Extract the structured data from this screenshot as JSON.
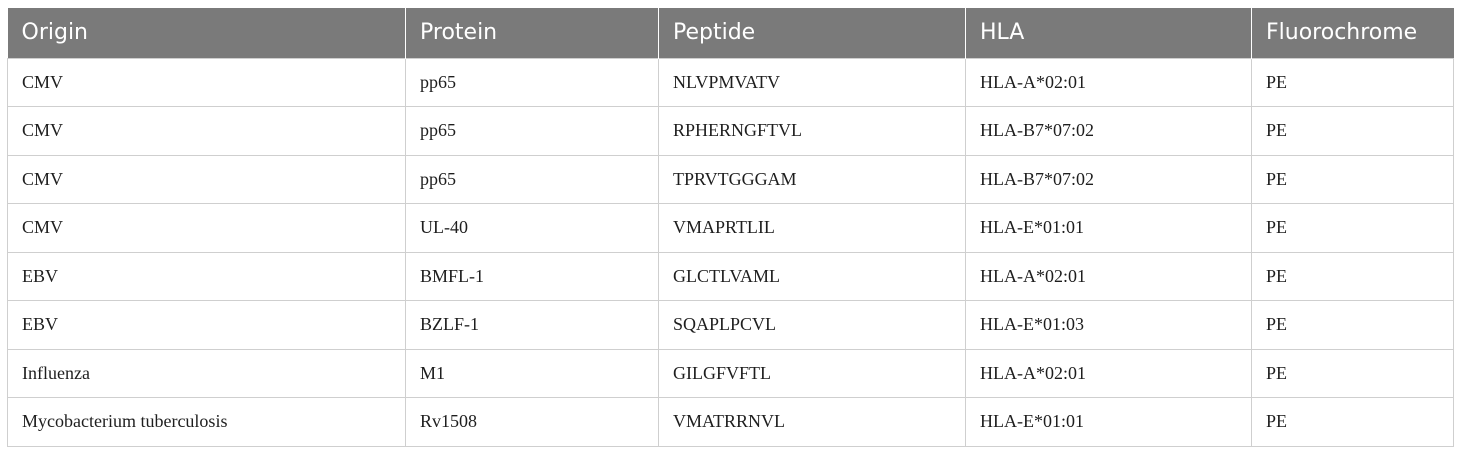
{
  "table": {
    "headers": [
      "Origin",
      "Protein",
      "Peptide",
      "HLA",
      "Fluorochrome"
    ],
    "rows": [
      [
        "CMV",
        "pp65",
        "NLVPMVATV",
        "HLA-A*02:01",
        "PE"
      ],
      [
        "CMV",
        "pp65",
        "RPHERNGFTVL",
        "HLA-B7*07:02",
        "PE"
      ],
      [
        "CMV",
        "pp65",
        "TPRVTGGGAM",
        "HLA-B7*07:02",
        "PE"
      ],
      [
        "CMV",
        "UL-40",
        "VMAPRTLIL",
        "HLA-E*01:01",
        "PE"
      ],
      [
        "EBV",
        "BMFL-1",
        "GLCTLVAML",
        "HLA-A*02:01",
        "PE"
      ],
      [
        "EBV",
        "BZLF-1",
        "SQAPLPCVL",
        "HLA-E*01:03",
        "PE"
      ],
      [
        "Influenza",
        "M1",
        "GILGFVFTL",
        "HLA-A*02:01",
        "PE"
      ],
      [
        "Mycobacterium tuberculosis",
        "Rv1508",
        "VMATRRNVL",
        "HLA-E*01:01",
        "PE"
      ]
    ]
  }
}
